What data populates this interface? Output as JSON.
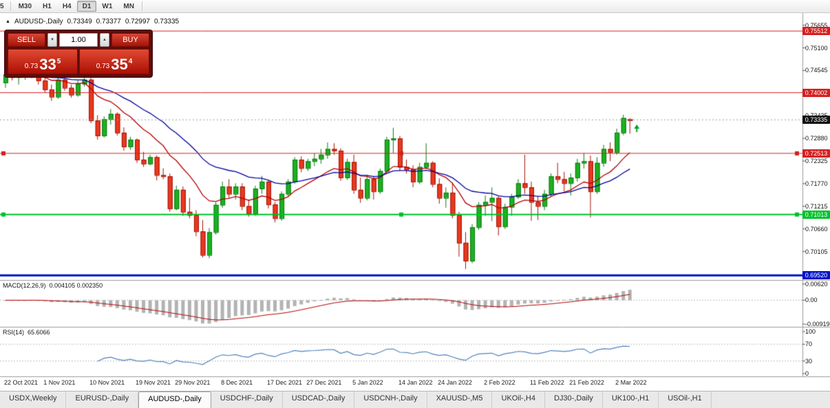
{
  "toolbar": {
    "timeframes": [
      "5",
      "M30",
      "H1",
      "H4",
      "D1",
      "W1",
      "MN"
    ],
    "active": "D1"
  },
  "chart_header": {
    "symbol": "AUDUSD-,Daily",
    "open": "0.73349",
    "high": "0.73377",
    "low": "0.72997",
    "close": "0.73335"
  },
  "icons": {
    "header_triangle": "▲",
    "spin_up": "▲",
    "spin_down": "▼",
    "order_arrow": "▲"
  },
  "trade_panel": {
    "sell_label": "SELL",
    "buy_label": "BUY",
    "volume": "1.00",
    "sell_price": {
      "prefix": "0.73",
      "big": "33",
      "sup": "5"
    },
    "buy_price": {
      "prefix": "0.73",
      "big": "35",
      "sup": "4"
    }
  },
  "price_axis": {
    "ticks": [
      "0.75655",
      "0.75100",
      "0.74545",
      "0.73990",
      "0.73435",
      "0.72880",
      "0.72325",
      "0.71770",
      "0.71215",
      "0.70660",
      "0.70105",
      "0.69550"
    ],
    "current": {
      "label": "0.73335",
      "value": 0.73335,
      "color": "#111111"
    }
  },
  "levels": [
    {
      "label": "0.75512",
      "value": 0.75512,
      "color": "#d42020",
      "width": 1,
      "handles": false
    },
    {
      "label": "0.74002",
      "value": 0.74002,
      "color": "#d42020",
      "width": 1,
      "handles": false
    },
    {
      "label": "0.72513",
      "value": 0.72513,
      "color": "#d42020",
      "width": 1,
      "handles": true
    },
    {
      "label": "0.71013",
      "value": 0.71013,
      "color": "#00c22a",
      "width": 2,
      "handles": true
    },
    {
      "label": "0.69520",
      "value": 0.6952,
      "color": "#0013c8",
      "width": 3,
      "handles": false
    }
  ],
  "indicators": {
    "macd": {
      "label": "MACD(12,26,9)",
      "values": "0.004105 0.002350",
      "axis": [
        "0.00620",
        "0.00",
        "-0.00919"
      ]
    },
    "rsi": {
      "label": "RSI(14)",
      "value": "65.6066",
      "axis": [
        "100",
        "70",
        "30",
        "0"
      ]
    }
  },
  "tabs": {
    "items": [
      "USDX,Weekly",
      "EURUSD-,Daily",
      "AUDUSD-,Daily",
      "USDCHF-,Daily",
      "USDCAD-,Daily",
      "USDCNH-,Daily",
      "XAUUSD-,M5",
      "UKOil-,H4",
      "DJ30-,Daily",
      "UK100-,H1",
      "USOil-,H1"
    ],
    "active_index": 2
  },
  "chart_data": {
    "type": "candlestick",
    "symbol": "AUDUSD-,Daily",
    "ma_periods": [
      12,
      26
    ],
    "ma_colors": [
      "#b40000",
      "#0000a0"
    ],
    "macd_params": [
      12,
      26,
      9
    ],
    "rsi_period": 14,
    "date_labels": [
      [
        "22 Oct 2021",
        0
      ],
      [
        "1 Nov 2021",
        6
      ],
      [
        "10 Nov 2021",
        13
      ],
      [
        "19 Nov 2021",
        20
      ],
      [
        "29 Nov 2021",
        26
      ],
      [
        "8 Dec 2021",
        33
      ],
      [
        "17 Dec 2021",
        40
      ],
      [
        "27 Dec 2021",
        46
      ],
      [
        "5 Jan 2022",
        53
      ],
      [
        "14 Jan 2022",
        60
      ],
      [
        "24 Jan 2022",
        66
      ],
      [
        "2 Feb 2022",
        73
      ],
      [
        "11 Feb 2022",
        80
      ],
      [
        "21 Feb 2022",
        86
      ],
      [
        "2 Mar 2022",
        93
      ]
    ],
    "ohlc": [
      [
        0.7425,
        0.745,
        0.7412,
        0.7445
      ],
      [
        0.7445,
        0.7458,
        0.743,
        0.7438
      ],
      [
        0.7438,
        0.7452,
        0.742,
        0.7448
      ],
      [
        0.7448,
        0.7455,
        0.7432,
        0.744
      ],
      [
        0.744,
        0.746,
        0.7435,
        0.7455
      ],
      [
        0.7455,
        0.7458,
        0.742,
        0.743
      ],
      [
        0.743,
        0.7445,
        0.74,
        0.7408
      ],
      [
        0.7408,
        0.742,
        0.738,
        0.739
      ],
      [
        0.739,
        0.744,
        0.7385,
        0.7432
      ],
      [
        0.7432,
        0.7445,
        0.7405,
        0.7412
      ],
      [
        0.7412,
        0.742,
        0.7388,
        0.7395
      ],
      [
        0.7395,
        0.743,
        0.739,
        0.7422
      ],
      [
        0.7422,
        0.7466,
        0.7415,
        0.7432
      ],
      [
        0.7432,
        0.7438,
        0.7325,
        0.7332
      ],
      [
        0.7332,
        0.7345,
        0.7285,
        0.7295
      ],
      [
        0.7295,
        0.7342,
        0.729,
        0.7335
      ],
      [
        0.7335,
        0.736,
        0.7322,
        0.7348
      ],
      [
        0.7348,
        0.7352,
        0.7295,
        0.7302
      ],
      [
        0.7302,
        0.7315,
        0.7258,
        0.7268
      ],
      [
        0.7268,
        0.7292,
        0.726,
        0.7285
      ],
      [
        0.7285,
        0.7288,
        0.7228,
        0.7236
      ],
      [
        0.7236,
        0.7255,
        0.7218,
        0.7226
      ],
      [
        0.7226,
        0.7248,
        0.7222,
        0.7242
      ],
      [
        0.7242,
        0.7246,
        0.7185,
        0.7198
      ],
      [
        0.7198,
        0.7215,
        0.7188,
        0.7195
      ],
      [
        0.7195,
        0.7202,
        0.7108,
        0.7116
      ],
      [
        0.7116,
        0.7172,
        0.7112,
        0.7162
      ],
      [
        0.7162,
        0.717,
        0.7098,
        0.7108
      ],
      [
        0.7108,
        0.7142,
        0.7092,
        0.71
      ],
      [
        0.71,
        0.7112,
        0.7048,
        0.706
      ],
      [
        0.706,
        0.7088,
        0.6996,
        0.7002
      ],
      [
        0.7002,
        0.7068,
        0.6994,
        0.7058
      ],
      [
        0.7058,
        0.7132,
        0.7052,
        0.7125
      ],
      [
        0.7125,
        0.7182,
        0.7118,
        0.717
      ],
      [
        0.717,
        0.7188,
        0.7142,
        0.7152
      ],
      [
        0.7152,
        0.7178,
        0.7138,
        0.717
      ],
      [
        0.717,
        0.7178,
        0.7112,
        0.7122
      ],
      [
        0.7122,
        0.7138,
        0.7096,
        0.7104
      ],
      [
        0.7104,
        0.7172,
        0.7098,
        0.7165
      ],
      [
        0.7165,
        0.7196,
        0.7152,
        0.7182
      ],
      [
        0.7182,
        0.7186,
        0.7116,
        0.7126
      ],
      [
        0.7126,
        0.7132,
        0.7082,
        0.7092
      ],
      [
        0.7092,
        0.7158,
        0.7086,
        0.7152
      ],
      [
        0.7152,
        0.7188,
        0.7145,
        0.7182
      ],
      [
        0.7182,
        0.7242,
        0.7176,
        0.7236
      ],
      [
        0.7236,
        0.7244,
        0.7205,
        0.7215
      ],
      [
        0.7215,
        0.7238,
        0.7208,
        0.7232
      ],
      [
        0.7232,
        0.7252,
        0.722,
        0.7238
      ],
      [
        0.7238,
        0.7262,
        0.7226,
        0.7248
      ],
      [
        0.7248,
        0.7278,
        0.7238,
        0.7262
      ],
      [
        0.7262,
        0.7276,
        0.7248,
        0.7258
      ],
      [
        0.7258,
        0.7264,
        0.7184,
        0.7192
      ],
      [
        0.7192,
        0.7238,
        0.7186,
        0.723
      ],
      [
        0.723,
        0.7248,
        0.7152,
        0.7162
      ],
      [
        0.7162,
        0.7192,
        0.713,
        0.7142
      ],
      [
        0.7142,
        0.7198,
        0.7136,
        0.7188
      ],
      [
        0.7188,
        0.7196,
        0.7138,
        0.7158
      ],
      [
        0.7158,
        0.7214,
        0.7152,
        0.7208
      ],
      [
        0.7208,
        0.7292,
        0.7202,
        0.7285
      ],
      [
        0.7285,
        0.7314,
        0.7252,
        0.7288
      ],
      [
        0.7288,
        0.7294,
        0.7208,
        0.7218
      ],
      [
        0.7218,
        0.7236,
        0.7202,
        0.7212
      ],
      [
        0.7212,
        0.7222,
        0.7168,
        0.7182
      ],
      [
        0.7182,
        0.7228,
        0.7176,
        0.7218
      ],
      [
        0.7218,
        0.7276,
        0.7212,
        0.7228
      ],
      [
        0.7228,
        0.7232,
        0.7168,
        0.7176
      ],
      [
        0.7176,
        0.719,
        0.7128,
        0.7142
      ],
      [
        0.7142,
        0.7168,
        0.7118,
        0.7155
      ],
      [
        0.7155,
        0.718,
        0.7092,
        0.71
      ],
      [
        0.71,
        0.7108,
        0.6998,
        0.7032
      ],
      [
        0.7032,
        0.7058,
        0.6968,
        0.6988
      ],
      [
        0.6988,
        0.7078,
        0.6982,
        0.707
      ],
      [
        0.707,
        0.7132,
        0.7064,
        0.7125
      ],
      [
        0.7125,
        0.7148,
        0.7098,
        0.7132
      ],
      [
        0.7132,
        0.7168,
        0.7085,
        0.7142
      ],
      [
        0.7142,
        0.7146,
        0.705,
        0.7072
      ],
      [
        0.7072,
        0.7128,
        0.7066,
        0.712
      ],
      [
        0.712,
        0.7152,
        0.7098,
        0.7145
      ],
      [
        0.7145,
        0.7188,
        0.714,
        0.7178
      ],
      [
        0.7178,
        0.7248,
        0.7152,
        0.7168
      ],
      [
        0.7168,
        0.7182,
        0.7086,
        0.7132
      ],
      [
        0.7132,
        0.7146,
        0.7088,
        0.7122
      ],
      [
        0.7122,
        0.7162,
        0.7112,
        0.7152
      ],
      [
        0.7152,
        0.7202,
        0.7146,
        0.7195
      ],
      [
        0.7195,
        0.7228,
        0.7178,
        0.7188
      ],
      [
        0.7188,
        0.7206,
        0.7158,
        0.7178
      ],
      [
        0.7178,
        0.7202,
        0.7148,
        0.7192
      ],
      [
        0.7192,
        0.7238,
        0.7182,
        0.7228
      ],
      [
        0.7228,
        0.7252,
        0.7214,
        0.7232
      ],
      [
        0.7232,
        0.7246,
        0.7094,
        0.7158
      ],
      [
        0.7158,
        0.7242,
        0.7152,
        0.7228
      ],
      [
        0.7228,
        0.7272,
        0.7218,
        0.7262
      ],
      [
        0.7262,
        0.7278,
        0.7232,
        0.7254
      ],
      [
        0.7254,
        0.7312,
        0.7248,
        0.7302
      ],
      [
        0.7302,
        0.7346,
        0.7296,
        0.7338
      ],
      [
        0.73349,
        0.73377,
        0.72997,
        0.73335
      ]
    ]
  }
}
